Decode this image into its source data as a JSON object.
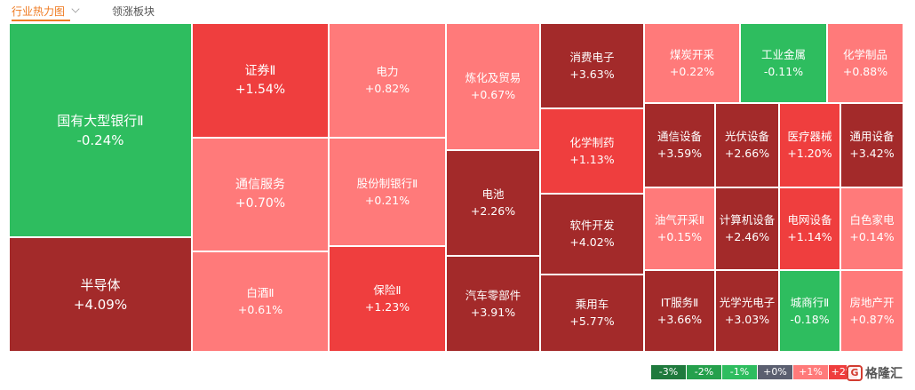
{
  "tabs": {
    "active": "行业热力图",
    "inactive": "领涨板块"
  },
  "colors": {
    "up3": "#a32a2a",
    "up2": "#ef3e3e",
    "up1": "#ff7a7a",
    "down1": "#2ebd5f",
    "neutral": "#5b5f70"
  },
  "cells": [
    {
      "name": "国有大型银行Ⅱ",
      "pct": "-0.24%",
      "color": "down1",
      "size": "l"
    },
    {
      "name": "半导体",
      "pct": "+4.09%",
      "color": "up3",
      "size": "l"
    },
    {
      "name": "证券Ⅱ",
      "pct": "+1.54%",
      "color": "up2",
      "size": "m"
    },
    {
      "name": "通信服务",
      "pct": "+0.70%",
      "color": "up1",
      "size": "m"
    },
    {
      "name": "白酒Ⅱ",
      "pct": "+0.61%",
      "color": "up1",
      "size": "s"
    },
    {
      "name": "电力",
      "pct": "+0.82%",
      "color": "up1",
      "size": "s"
    },
    {
      "name": "股份制银行Ⅱ",
      "pct": "+0.21%",
      "color": "up1",
      "size": "s"
    },
    {
      "name": "保险Ⅱ",
      "pct": "+1.23%",
      "color": "up2",
      "size": "s"
    },
    {
      "name": "炼化及贸易",
      "pct": "+0.67%",
      "color": "up1",
      "size": "s"
    },
    {
      "name": "电池",
      "pct": "+2.26%",
      "color": "up3",
      "size": "s"
    },
    {
      "name": "汽车零部件",
      "pct": "+3.91%",
      "color": "up3",
      "size": "s"
    },
    {
      "name": "消费电子",
      "pct": "+3.63%",
      "color": "up3",
      "size": "s"
    },
    {
      "name": "化学制药",
      "pct": "+1.13%",
      "color": "up2",
      "size": "s"
    },
    {
      "name": "软件开发",
      "pct": "+4.02%",
      "color": "up3",
      "size": "s"
    },
    {
      "name": "乘用车",
      "pct": "+5.77%",
      "color": "up3",
      "size": "s"
    },
    {
      "name": "煤炭开采",
      "pct": "+0.22%",
      "color": "up1",
      "size": "s"
    },
    {
      "name": "工业金属",
      "pct": "-0.11%",
      "color": "down1",
      "size": "s"
    },
    {
      "name": "化学制品",
      "pct": "+0.88%",
      "color": "up1",
      "size": "s"
    },
    {
      "name": "通信设备",
      "pct": "+3.59%",
      "color": "up3",
      "size": "s"
    },
    {
      "name": "光伏设备",
      "pct": "+2.66%",
      "color": "up3",
      "size": "s"
    },
    {
      "name": "医疗器械",
      "pct": "+1.20%",
      "color": "up2",
      "size": "s"
    },
    {
      "name": "通用设备",
      "pct": "+3.42%",
      "color": "up3",
      "size": "s"
    },
    {
      "name": "油气开采Ⅱ",
      "pct": "+0.15%",
      "color": "up1",
      "size": "s"
    },
    {
      "name": "计算机设备",
      "pct": "+2.46%",
      "color": "up3",
      "size": "s"
    },
    {
      "name": "电网设备",
      "pct": "+1.14%",
      "color": "up2",
      "size": "s"
    },
    {
      "name": "白色家电",
      "pct": "+0.14%",
      "color": "up1",
      "size": "s"
    },
    {
      "name": "IT服务Ⅱ",
      "pct": "+3.66%",
      "color": "up3",
      "size": "s"
    },
    {
      "name": "光学光电子",
      "pct": "+3.03%",
      "color": "up3",
      "size": "s"
    },
    {
      "name": "城商行Ⅱ",
      "pct": "-0.18%",
      "color": "down1",
      "size": "s"
    },
    {
      "name": "房地产开",
      "pct": "+0.87%",
      "color": "up1",
      "size": "s"
    }
  ],
  "legend": [
    {
      "label": "-3%",
      "color": "#1f7a3d"
    },
    {
      "label": "-2%",
      "color": "#25a04c"
    },
    {
      "label": "-1%",
      "color": "#2ebd5f"
    },
    {
      "label": "+0%",
      "color": "#5b5f70"
    },
    {
      "label": "+1%",
      "color": "#ff7a7a"
    },
    {
      "label": "+2%",
      "color": "#ef3e3e"
    }
  ],
  "logo": {
    "mark": "G",
    "text": "格隆汇"
  }
}
